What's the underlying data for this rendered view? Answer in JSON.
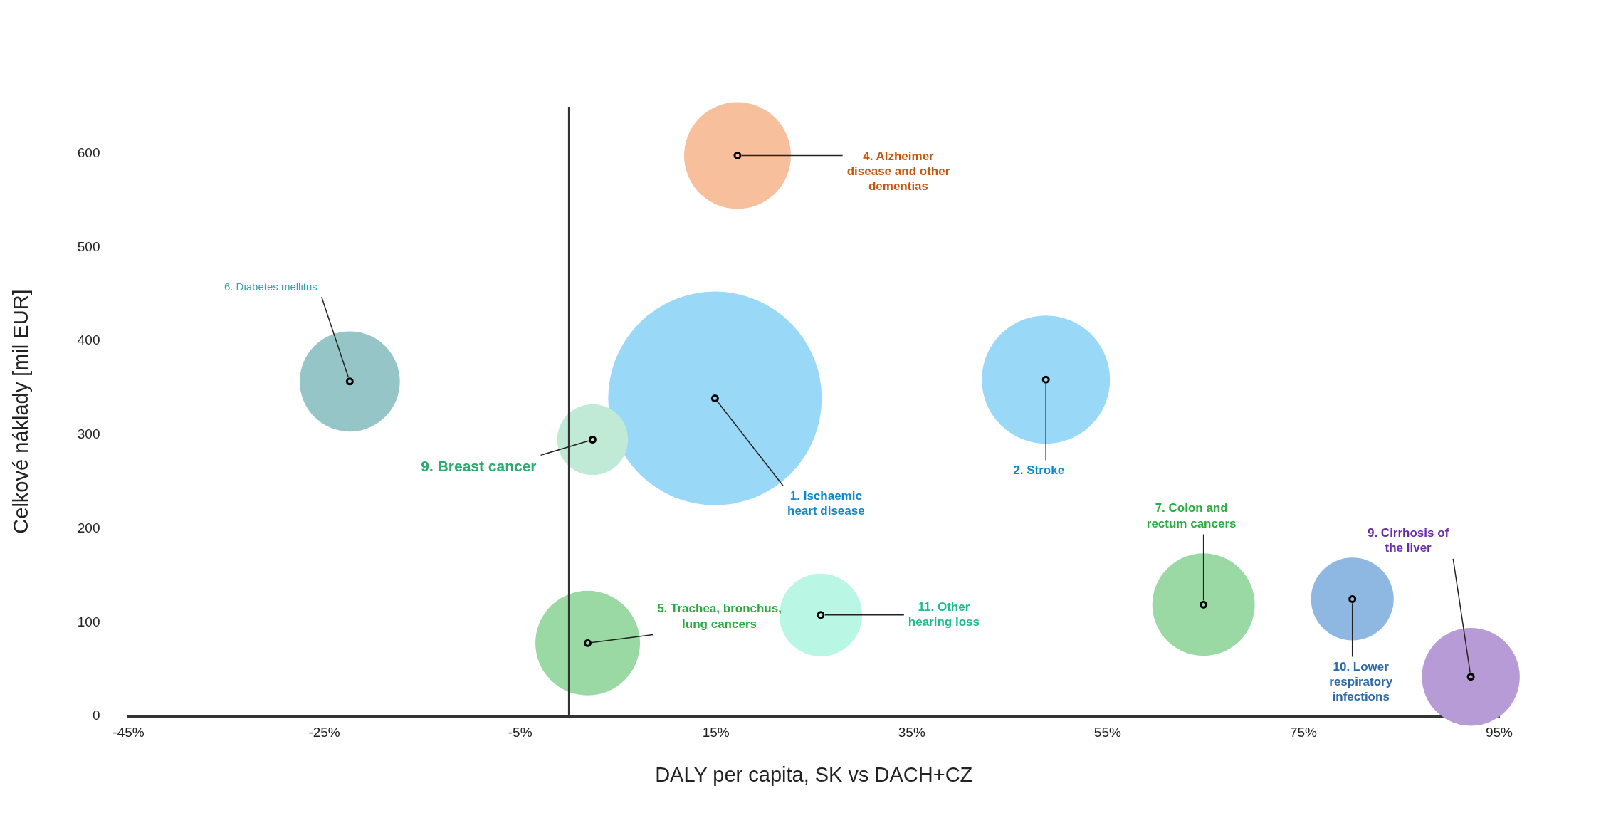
{
  "chart_data": {
    "type": "bubble",
    "xlabel": "DALY per capita, SK vs DACH+CZ",
    "ylabel": "Celkové náklady [mil EUR]",
    "xlim": [
      -45,
      95
    ],
    "xticks": [
      {
        "value": -45,
        "label": "-45%"
      },
      {
        "value": -25,
        "label": "-25%"
      },
      {
        "value": -5,
        "label": "-5%"
      },
      {
        "value": 15,
        "label": "15%"
      },
      {
        "value": 35,
        "label": "35%"
      },
      {
        "value": 55,
        "label": "55%"
      },
      {
        "value": 75,
        "label": "75%"
      },
      {
        "value": 95,
        "label": "95%"
      }
    ],
    "ylim": [
      0,
      650
    ],
    "yticks": [
      0,
      100,
      200,
      300,
      400,
      500,
      600
    ],
    "ref_lines": [
      {
        "axis": "x",
        "value": 0
      }
    ],
    "series": [
      {
        "name": "6. Diabetes mellitus",
        "color": "#96c5c7",
        "x": [
          -22.4
        ],
        "values": [
          357
        ],
        "sizes": [
          0.22
        ]
      },
      {
        "name": "9. Breast cancer",
        "color": "#c0ead6",
        "x": [
          2.4
        ],
        "values": [
          295
        ],
        "sizes": [
          0.11
        ]
      },
      {
        "name": "1. Ischaemic heart disease",
        "color": "#9ad8f8",
        "x": [
          14.9
        ],
        "values": [
          339
        ],
        "sizes": [
          1
        ]
      },
      {
        "name": "4. Alzheimer disease and other dementias",
        "color": "#f7bf9b",
        "x": [
          17.2
        ],
        "values": [
          598
        ],
        "sizes": [
          0.25
        ]
      },
      {
        "name": "2. Stroke",
        "color": "#9ad8f8",
        "x": [
          48.7
        ],
        "values": [
          359
        ],
        "sizes": [
          0.36
        ]
      },
      {
        "name": "5. Trachea, bronchus, lung cancers",
        "color": "#9ad9a4",
        "x": [
          1.9
        ],
        "values": [
          78
        ],
        "sizes": [
          0.24
        ]
      },
      {
        "name": "11. Other hearing loss",
        "color": "#baf6e4",
        "x": [
          25.7
        ],
        "values": [
          108
        ],
        "sizes": [
          0.15
        ]
      },
      {
        "name": "7. Colon and rectum cancers",
        "color": "#9ad9a4",
        "x": [
          64.8
        ],
        "values": [
          119
        ],
        "sizes": [
          0.23
        ]
      },
      {
        "name": "10. Lower respiratory infections",
        "color": "#8eb7e2",
        "x": [
          80.0
        ],
        "values": [
          125
        ],
        "sizes": [
          0.15
        ]
      },
      {
        "name": "9. Cirrhosis of the liver",
        "color": "#b79bd6",
        "x": [
          92.1
        ],
        "values": [
          42
        ],
        "sizes": [
          0.21
        ]
      }
    ]
  }
}
